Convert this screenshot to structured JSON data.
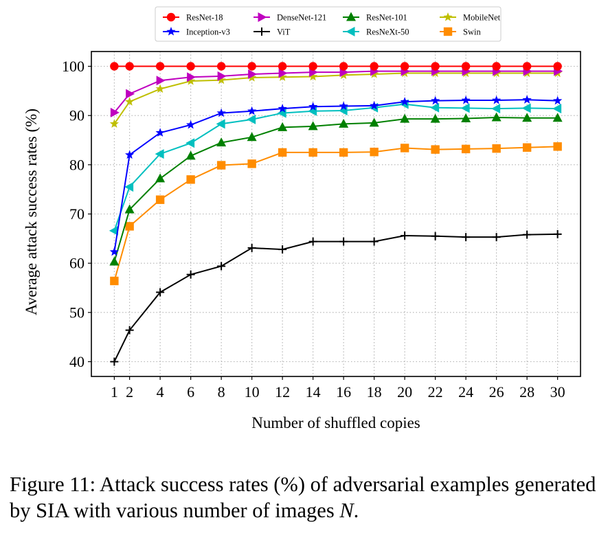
{
  "chart_data": {
    "type": "line",
    "xlabel": "Number of shuffled copies",
    "ylabel": "Average attack success rates (%)",
    "x": [
      1,
      2,
      4,
      6,
      8,
      10,
      12,
      14,
      16,
      18,
      20,
      22,
      24,
      26,
      28,
      30
    ],
    "xticks": [
      "1",
      "2",
      "4",
      "6",
      "8",
      "10",
      "12",
      "14",
      "16",
      "18",
      "20",
      "22",
      "24",
      "26",
      "28",
      "30"
    ],
    "xlim": [
      -0.5,
      31.5
    ],
    "ylim": [
      37,
      103
    ],
    "yticks": [
      "40",
      "50",
      "60",
      "70",
      "80",
      "90",
      "100"
    ],
    "grid": true,
    "legend_position": "top",
    "series": [
      {
        "name": "ResNet-18",
        "color": "#ff0000",
        "marker": "circle",
        "values": [
          100,
          100,
          100,
          100,
          100,
          100,
          100,
          100,
          100,
          100,
          100,
          100,
          100,
          100,
          100,
          100
        ]
      },
      {
        "name": "Inception-v3",
        "color": "#0000ff",
        "marker": "star",
        "values": [
          62.3,
          82.0,
          86.5,
          88.1,
          90.5,
          90.9,
          91.4,
          91.8,
          91.9,
          92.0,
          92.8,
          93.0,
          93.1,
          93.1,
          93.2,
          93.0
        ]
      },
      {
        "name": "DenseNet-121",
        "color": "#bf00bf",
        "marker": "triangle-right",
        "values": [
          90.6,
          94.4,
          97.1,
          97.8,
          98.0,
          98.4,
          98.6,
          98.8,
          98.8,
          99.0,
          99.0,
          99.0,
          99.0,
          99.0,
          99.0,
          99.0
        ]
      },
      {
        "name": "ViT",
        "color": "#000000",
        "marker": "plus",
        "values": [
          40.0,
          46.4,
          54.1,
          57.7,
          59.4,
          63.1,
          62.8,
          64.4,
          64.4,
          64.4,
          65.6,
          65.5,
          65.3,
          65.3,
          65.8,
          65.9
        ]
      },
      {
        "name": "ResNet-101",
        "color": "#008000",
        "marker": "triangle-up",
        "values": [
          60.3,
          70.9,
          77.2,
          81.8,
          84.5,
          85.6,
          87.6,
          87.8,
          88.3,
          88.5,
          89.3,
          89.3,
          89.4,
          89.6,
          89.5,
          89.5
        ]
      },
      {
        "name": "ResNeXt-50",
        "color": "#00bfbf",
        "marker": "triangle-left",
        "values": [
          66.6,
          75.5,
          82.2,
          84.4,
          88.3,
          89.2,
          90.5,
          90.9,
          91.0,
          91.6,
          92.3,
          91.6,
          91.5,
          91.4,
          91.5,
          91.4
        ]
      },
      {
        "name": "MobileNet",
        "color": "#bfbf00",
        "marker": "star",
        "values": [
          88.3,
          92.8,
          95.4,
          97.0,
          97.2,
          97.7,
          97.8,
          97.9,
          98.2,
          98.4,
          98.6,
          98.6,
          98.6,
          98.6,
          98.6,
          98.6
        ]
      },
      {
        "name": "Swin",
        "color": "#ff8c00",
        "marker": "square",
        "values": [
          56.4,
          67.5,
          72.9,
          77.0,
          79.9,
          80.2,
          82.5,
          82.5,
          82.5,
          82.6,
          83.4,
          83.1,
          83.2,
          83.3,
          83.5,
          83.7
        ]
      }
    ]
  },
  "caption": {
    "label": "Figure 11:",
    "text": " Attack success rates (%) of adversarial examples generated by SIA with various number of images ",
    "variable": "N",
    "suffix": "."
  }
}
